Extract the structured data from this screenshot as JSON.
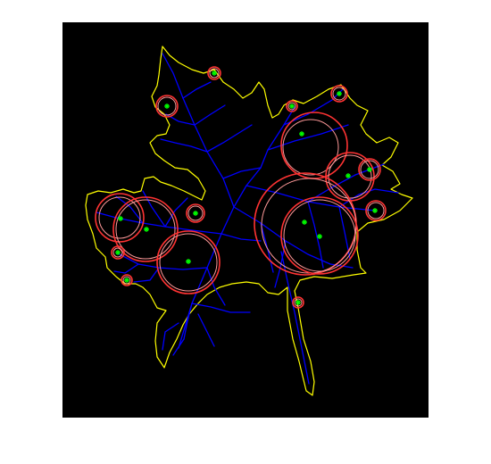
{
  "image": {
    "subject": "leaf",
    "colors": {
      "background": "#ffffff",
      "axes": "#000000",
      "outline": "#ffff00",
      "veins": "#0000ff",
      "circles": "#ff3333",
      "centers": "#00ff00"
    }
  }
}
